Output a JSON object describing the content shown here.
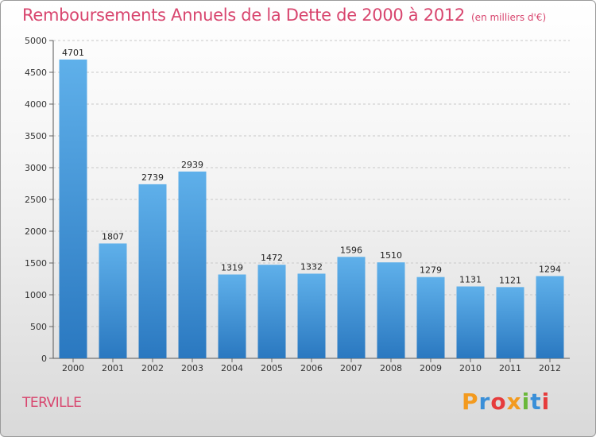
{
  "chart_data": {
    "type": "bar",
    "title": "Remboursements Annuels de la Dette de 2000 à 2012",
    "subtitle": "(en milliers d'€)",
    "categories": [
      "2000",
      "2001",
      "2002",
      "2003",
      "2004",
      "2005",
      "2006",
      "2007",
      "2008",
      "2009",
      "2010",
      "2011",
      "2012"
    ],
    "values": [
      4701,
      1807,
      2739,
      2939,
      1319,
      1472,
      1332,
      1596,
      1510,
      1279,
      1131,
      1121,
      1294
    ],
    "ylim": [
      0,
      5000
    ],
    "yticks": [
      0,
      500,
      1000,
      1500,
      2000,
      2500,
      3000,
      3500,
      4000,
      4500,
      5000
    ],
    "grid": true,
    "bar_color": "#4f9fe0"
  },
  "footer": {
    "commune": "TERVILLE"
  },
  "logo": {
    "letters": [
      {
        "ch": "P",
        "color": "#f39a1e"
      },
      {
        "ch": "r",
        "color": "#3a8fd8"
      },
      {
        "ch": "o",
        "color": "#e63c3c"
      },
      {
        "ch": "x",
        "color": "#f39a1e"
      },
      {
        "ch": "i",
        "color": "#6ab83a"
      },
      {
        "ch": "t",
        "color": "#3a8fd8"
      },
      {
        "ch": "i",
        "color": "#e63c3c"
      }
    ]
  }
}
